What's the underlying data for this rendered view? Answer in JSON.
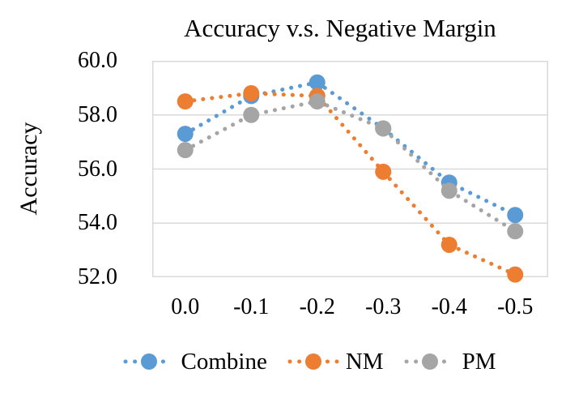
{
  "chart_data": {
    "type": "line",
    "title": "Accuracy v.s. Negative Margin",
    "xlabel": "",
    "ylabel": "Accuracy",
    "categories": [
      "0.0",
      "-0.1",
      "-0.2",
      "-0.3",
      "-0.4",
      "-0.5"
    ],
    "y_ticks": [
      "60.0",
      "58.0",
      "56.0",
      "54.0",
      "52.0"
    ],
    "ylim": [
      52.0,
      60.0
    ],
    "grid": true,
    "legend_position": "bottom",
    "line_style": "dotted",
    "marker": "circle",
    "series": [
      {
        "name": "Combine",
        "color": "#5B9BD5",
        "values": [
          57.3,
          58.7,
          59.2,
          57.5,
          55.5,
          54.3
        ]
      },
      {
        "name": "NM",
        "color": "#ED7D31",
        "values": [
          58.5,
          58.8,
          58.7,
          55.9,
          53.2,
          52.1
        ]
      },
      {
        "name": "PM",
        "color": "#A5A5A5",
        "values": [
          56.7,
          58.0,
          58.5,
          57.5,
          55.2,
          53.7
        ]
      }
    ],
    "colors": {
      "gridline": "#D9D9D9",
      "plot_border": "#D9D9D9",
      "text": "#000000",
      "background": "#FFFFFF"
    }
  }
}
